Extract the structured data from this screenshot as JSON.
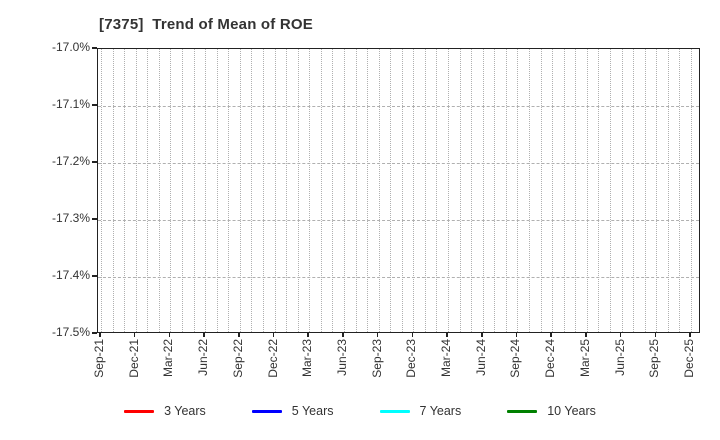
{
  "chart_data": {
    "type": "line",
    "title": "[7375]  Trend of Mean of ROE",
    "xlabel": "",
    "ylabel": "",
    "ylim": [
      -17.5,
      -17.0
    ],
    "y_tick_labels": [
      "-17.0%",
      "-17.1%",
      "-17.2%",
      "-17.3%",
      "-17.4%",
      "-17.5%"
    ],
    "x_tick_labels": [
      "Sep-21",
      "Dec-21",
      "Mar-22",
      "Jun-22",
      "Sep-22",
      "Dec-22",
      "Mar-23",
      "Jun-23",
      "Sep-23",
      "Dec-23",
      "Mar-24",
      "Jun-24",
      "Sep-24",
      "Dec-24",
      "Mar-25",
      "Jun-25",
      "Sep-25",
      "Dec-25"
    ],
    "grid": true,
    "plot_empty": true,
    "legend_position": "bottom",
    "series": [
      {
        "name": "3 Years",
        "color": "#ff0000",
        "values": []
      },
      {
        "name": "5 Years",
        "color": "#0000ff",
        "values": []
      },
      {
        "name": "7 Years",
        "color": "#00ffff",
        "values": []
      },
      {
        "name": "10 Years",
        "color": "#008000",
        "values": []
      }
    ]
  }
}
